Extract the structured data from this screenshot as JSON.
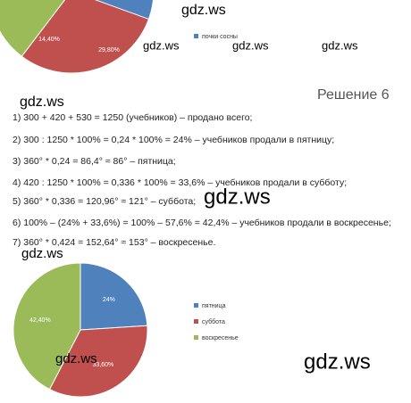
{
  "watermarks": [
    "gdz.ws",
    "gdz.ws",
    "gdz.ws",
    "gdz.ws",
    "gdz.ws",
    "gdz.ws",
    "gdz.ws",
    "gdz.ws",
    "gdz.ws"
  ],
  "top_chart": {
    "type": "pie",
    "values": [
      29.8,
      14.4
    ],
    "value_labels": [
      "29,80%",
      "14,40%"
    ],
    "colors": [
      "#c0504d",
      "#9bbb59"
    ],
    "legend": [
      "почки сосны"
    ],
    "legend_color": "#4f81bd"
  },
  "heading": "Решение 6",
  "steps": [
    "1) 300 + 420 + 530 = 1250 (учебников) – продано всего;",
    "2) 300 : 1250 * 100% = 0,24 * 100% = 24% – учебников продали в пятницу;",
    "3) 360° * 0,24 = 86,4° ≈ 86° – пятница;",
    "4) 420 : 1250 * 100% = 0,336 * 100% = 33,6% – учебников продали в субботу;",
    "5) 360° * 0,336 = 120,96° ≈ 121° – суббота;",
    "6) 100% – (24% + 33,6%) = 100% – 57,6% = 42,4% – учебников продали в воскресенье;",
    "7) 360° * 0,424 = 152,64° ≈ 153° – воскресенье."
  ],
  "chart": {
    "type": "pie",
    "categories": [
      "пятница",
      "суббота",
      "воскресенье"
    ],
    "values": [
      24,
      33.6,
      42.4
    ],
    "value_labels": [
      "24%",
      "33,60%",
      "42,40%"
    ],
    "colors": [
      "#4f81bd",
      "#c0504d",
      "#9bbb59"
    ]
  }
}
